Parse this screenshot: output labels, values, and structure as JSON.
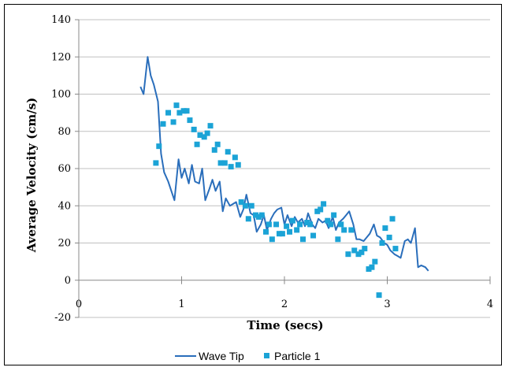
{
  "chart_data": {
    "type": "scatter",
    "xlabel": "Time (secs)",
    "ylabel": "Average Velocity (cm/s)",
    "xlim": [
      0,
      4
    ],
    "ylim": [
      -20,
      140
    ],
    "x_ticks": [
      "0",
      "1",
      "2",
      "3",
      "4"
    ],
    "y_ticks": [
      "-20",
      "0",
      "20",
      "40",
      "60",
      "80",
      "100",
      "120",
      "140"
    ],
    "grid": "horizontal",
    "legend_position": "bottom",
    "series": [
      {
        "name": "Wave Tip",
        "kind": "line",
        "color": "#2a6ebb",
        "points": [
          [
            0.6,
            104
          ],
          [
            0.63,
            100
          ],
          [
            0.67,
            120
          ],
          [
            0.7,
            110
          ],
          [
            0.73,
            105
          ],
          [
            0.77,
            96
          ],
          [
            0.8,
            68
          ],
          [
            0.83,
            58
          ],
          [
            0.87,
            53
          ],
          [
            0.9,
            48
          ],
          [
            0.93,
            43
          ],
          [
            0.97,
            65
          ],
          [
            1.0,
            55
          ],
          [
            1.03,
            60
          ],
          [
            1.07,
            52
          ],
          [
            1.1,
            62
          ],
          [
            1.13,
            53
          ],
          [
            1.17,
            52
          ],
          [
            1.2,
            60
          ],
          [
            1.23,
            43
          ],
          [
            1.27,
            49
          ],
          [
            1.3,
            54
          ],
          [
            1.33,
            48
          ],
          [
            1.37,
            53
          ],
          [
            1.4,
            37
          ],
          [
            1.43,
            44
          ],
          [
            1.47,
            40
          ],
          [
            1.5,
            41
          ],
          [
            1.53,
            42
          ],
          [
            1.57,
            34
          ],
          [
            1.6,
            38
          ],
          [
            1.63,
            46
          ],
          [
            1.67,
            36
          ],
          [
            1.7,
            35
          ],
          [
            1.73,
            26
          ],
          [
            1.77,
            30
          ],
          [
            1.8,
            35
          ],
          [
            1.83,
            27
          ],
          [
            1.87,
            33
          ],
          [
            1.9,
            36
          ],
          [
            1.93,
            38
          ],
          [
            1.97,
            39
          ],
          [
            2.0,
            30
          ],
          [
            2.03,
            35
          ],
          [
            2.07,
            29
          ],
          [
            2.1,
            34
          ],
          [
            2.13,
            31
          ],
          [
            2.17,
            33
          ],
          [
            2.2,
            29
          ],
          [
            2.23,
            36
          ],
          [
            2.27,
            30
          ],
          [
            2.3,
            28
          ],
          [
            2.33,
            33
          ],
          [
            2.37,
            31
          ],
          [
            2.4,
            32
          ],
          [
            2.43,
            28
          ],
          [
            2.47,
            34
          ],
          [
            2.5,
            27
          ],
          [
            2.53,
            31
          ],
          [
            2.57,
            33
          ],
          [
            2.6,
            35
          ],
          [
            2.63,
            37
          ],
          [
            2.67,
            30
          ],
          [
            2.7,
            22
          ],
          [
            2.73,
            22
          ],
          [
            2.77,
            21
          ],
          [
            2.8,
            23
          ],
          [
            2.83,
            25
          ],
          [
            2.87,
            30
          ],
          [
            2.9,
            24
          ],
          [
            2.93,
            23
          ],
          [
            2.97,
            20
          ],
          [
            3.0,
            19
          ],
          [
            3.03,
            16
          ],
          [
            3.07,
            14
          ],
          [
            3.1,
            13
          ],
          [
            3.13,
            12
          ],
          [
            3.17,
            21
          ],
          [
            3.2,
            22
          ],
          [
            3.23,
            20
          ],
          [
            3.27,
            28
          ],
          [
            3.3,
            7
          ],
          [
            3.33,
            8
          ],
          [
            3.37,
            7
          ],
          [
            3.4,
            5
          ]
        ]
      },
      {
        "name": "Particle 1",
        "kind": "scatter",
        "color": "#1ba3d6",
        "points": [
          [
            0.75,
            63
          ],
          [
            0.78,
            72
          ],
          [
            0.82,
            84
          ],
          [
            0.87,
            90
          ],
          [
            0.92,
            85
          ],
          [
            0.95,
            94
          ],
          [
            0.98,
            90
          ],
          [
            1.02,
            91
          ],
          [
            1.05,
            91
          ],
          [
            1.08,
            86
          ],
          [
            1.12,
            81
          ],
          [
            1.15,
            73
          ],
          [
            1.18,
            78
          ],
          [
            1.22,
            77
          ],
          [
            1.25,
            79
          ],
          [
            1.28,
            83
          ],
          [
            1.32,
            70
          ],
          [
            1.35,
            73
          ],
          [
            1.38,
            63
          ],
          [
            1.42,
            63
          ],
          [
            1.45,
            69
          ],
          [
            1.48,
            61
          ],
          [
            1.52,
            66
          ],
          [
            1.55,
            62
          ],
          [
            1.58,
            42
          ],
          [
            1.62,
            40
          ],
          [
            1.65,
            33
          ],
          [
            1.68,
            40
          ],
          [
            1.72,
            35
          ],
          [
            1.75,
            34
          ],
          [
            1.78,
            35
          ],
          [
            1.82,
            26
          ],
          [
            1.85,
            30
          ],
          [
            1.88,
            22
          ],
          [
            1.92,
            30
          ],
          [
            1.95,
            25
          ],
          [
            1.98,
            25
          ],
          [
            2.02,
            29
          ],
          [
            2.05,
            26
          ],
          [
            2.08,
            32
          ],
          [
            2.12,
            27
          ],
          [
            2.15,
            30
          ],
          [
            2.18,
            22
          ],
          [
            2.22,
            31
          ],
          [
            2.25,
            30
          ],
          [
            2.28,
            24
          ],
          [
            2.32,
            37
          ],
          [
            2.35,
            38
          ],
          [
            2.38,
            41
          ],
          [
            2.42,
            32
          ],
          [
            2.45,
            30
          ],
          [
            2.48,
            35
          ],
          [
            2.52,
            22
          ],
          [
            2.55,
            30
          ],
          [
            2.58,
            27
          ],
          [
            2.62,
            14
          ],
          [
            2.65,
            27
          ],
          [
            2.68,
            16
          ],
          [
            2.72,
            14
          ],
          [
            2.75,
            15
          ],
          [
            2.78,
            17
          ],
          [
            2.82,
            6
          ],
          [
            2.85,
            7
          ],
          [
            2.88,
            10
          ],
          [
            2.92,
            -8
          ],
          [
            2.95,
            20
          ],
          [
            2.98,
            28
          ],
          [
            3.02,
            23
          ],
          [
            3.05,
            33
          ],
          [
            3.08,
            17
          ]
        ]
      }
    ]
  }
}
